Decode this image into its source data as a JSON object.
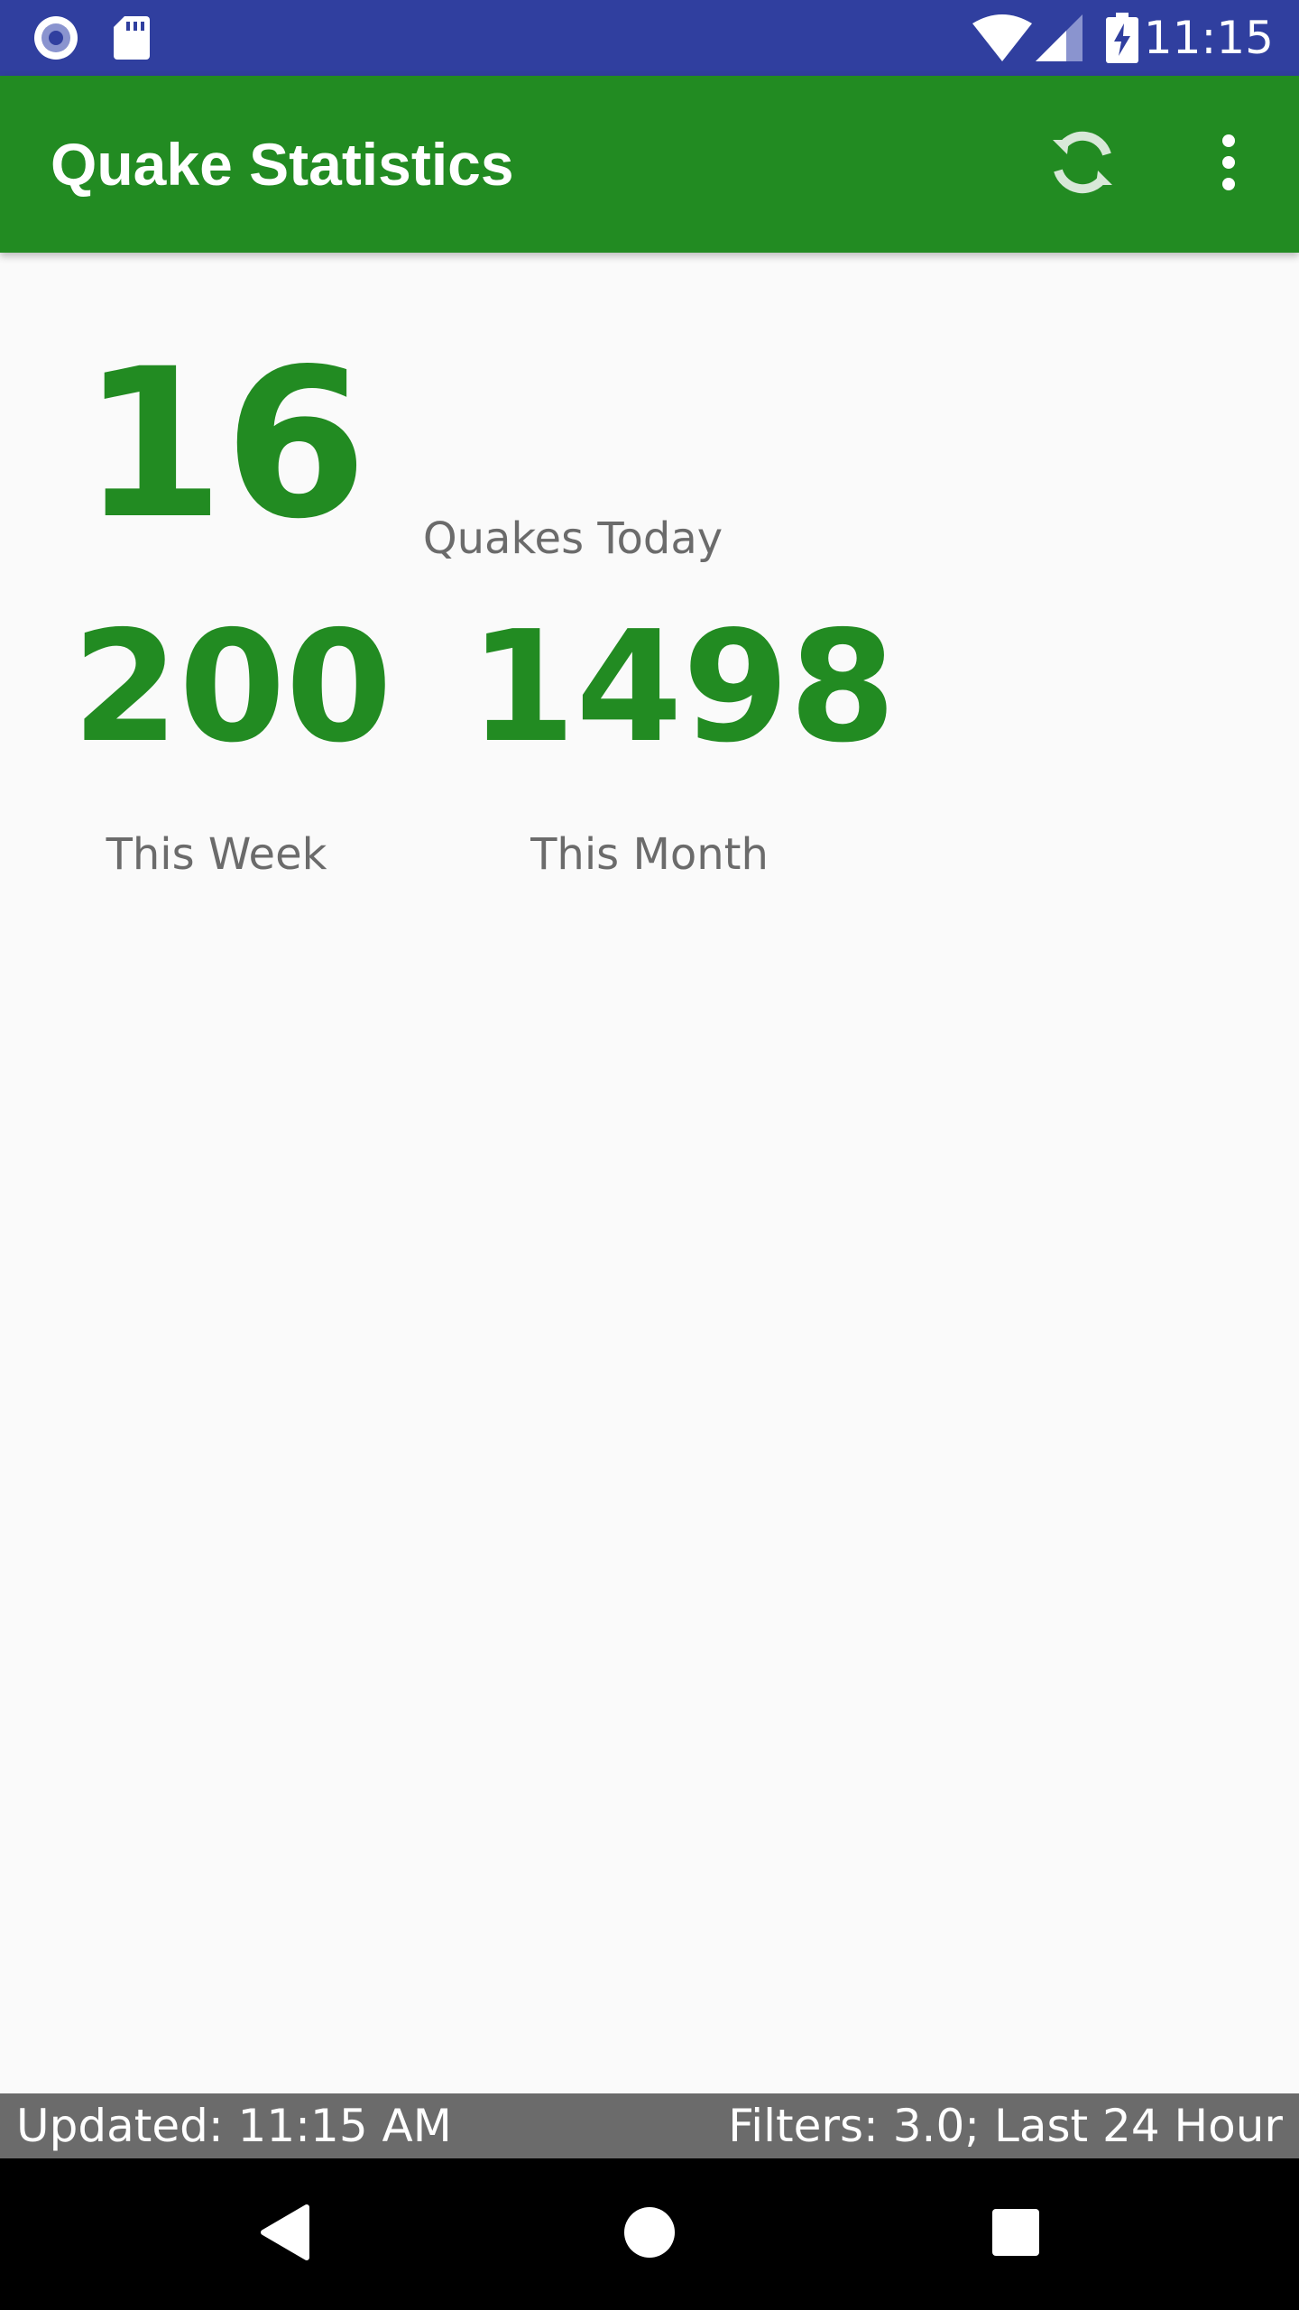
{
  "status_bar": {
    "time": "11:15",
    "background": "#303f9f",
    "icons": [
      "notification-circle-icon",
      "sd-card-icon",
      "wifi-icon",
      "cell-signal-icon",
      "battery-charging-icon"
    ]
  },
  "app_bar": {
    "title": "Quake Statistics",
    "background": "#228b22",
    "actions": [
      "refresh-icon",
      "overflow-menu-icon"
    ]
  },
  "stats": {
    "today": {
      "value": "16",
      "label": "Quakes Today"
    },
    "week": {
      "value": "200",
      "label": "This Week"
    },
    "month": {
      "value": "1498",
      "label": "This Month"
    },
    "accent": "#228b22"
  },
  "footer": {
    "updated": "Updated: 11:15 AM",
    "filters": "Filters: 3.0; Last 24 Hour"
  },
  "nav_bar": {
    "buttons": [
      "back-icon",
      "home-icon",
      "recents-icon"
    ]
  }
}
